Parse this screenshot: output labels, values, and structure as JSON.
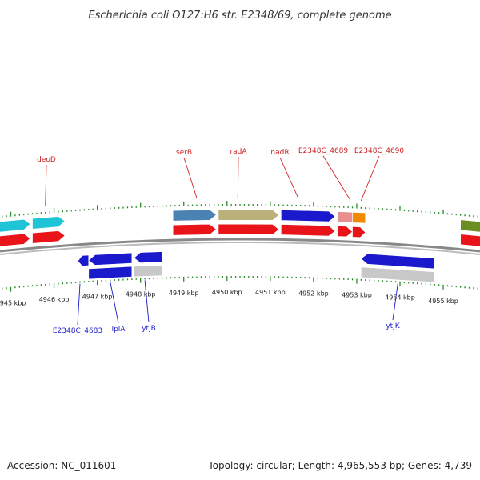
{
  "title": "Escherichia coli O127:H6 str. E2348/69, complete genome",
  "footer": {
    "accession": "Accession: NC_011601",
    "summary": "Topology: circular; Length: 4,965,553 bp; Genes: 4,739"
  },
  "colors": {
    "cds_red": "#e8141a",
    "backbone": "#888888",
    "tick_green": "#2a8a2a",
    "label_top": "#cc2222",
    "label_bottom": "#1a1acc",
    "strand_blue": "#1a1acc",
    "grey": "#c8c8c8"
  },
  "chart_data": {
    "type": "genome-map",
    "view_range_kbp": [
      4944.75,
      4955.85
    ],
    "tick_labels": [
      {
        "kbp": 4945,
        "label": "4945 kbp"
      },
      {
        "kbp": 4946,
        "label": "4946 kbp"
      },
      {
        "kbp": 4947,
        "label": "4947 kbp"
      },
      {
        "kbp": 4948,
        "label": "4948 kbp"
      },
      {
        "kbp": 4949,
        "label": "4949 kbp"
      },
      {
        "kbp": 4950,
        "label": "4950 kbp"
      },
      {
        "kbp": 4951,
        "label": "4951 kbp"
      },
      {
        "kbp": 4952,
        "label": "4952 kbp"
      },
      {
        "kbp": 4953,
        "label": "4953 kbp"
      },
      {
        "kbp": 4954,
        "label": "4954 kbp"
      },
      {
        "kbp": 4955,
        "label": "4955 kbp"
      }
    ],
    "forward_features": [
      {
        "start": 4944.7,
        "end": 4945.45,
        "color": "#1fc4d6",
        "arrow": true
      },
      {
        "start": 4945.5,
        "end": 4946.25,
        "color": "#1fc4d6",
        "arrow": true
      },
      {
        "start": 4948.75,
        "end": 4949.75,
        "color": "#4a82b4",
        "arrow": true
      },
      {
        "start": 4949.8,
        "end": 4951.2,
        "color": "#b9b07a",
        "arrow": true
      },
      {
        "start": 4951.25,
        "end": 4952.5,
        "color": "#1a1acc",
        "arrow": true
      },
      {
        "start": 4952.55,
        "end": 4952.9,
        "color": "#e89090",
        "arrow": false
      },
      {
        "start": 4952.9,
        "end": 4953.2,
        "color": "#f08a00",
        "arrow": false
      },
      {
        "start": 4955.4,
        "end": 4956.0,
        "color": "#6b8e23",
        "arrow": true
      }
    ],
    "forward_cds": [
      {
        "start": 4944.7,
        "end": 4945.45
      },
      {
        "start": 4945.5,
        "end": 4946.25
      },
      {
        "start": 4948.75,
        "end": 4949.75
      },
      {
        "start": 4949.8,
        "end": 4951.2
      },
      {
        "start": 4951.25,
        "end": 4952.5
      },
      {
        "start": 4952.55,
        "end": 4952.9
      },
      {
        "start": 4952.9,
        "end": 4953.2
      },
      {
        "start": 4955.4,
        "end": 4956.0
      }
    ],
    "reverse_features": [
      {
        "start": 4946.55,
        "end": 4946.8,
        "color": "#1a1acc",
        "arrow": true
      },
      {
        "start": 4946.8,
        "end": 4947.8,
        "color": "#1a1acc",
        "arrow": true
      },
      {
        "start": 4947.85,
        "end": 4948.5,
        "color": "#1a1acc",
        "arrow": true
      },
      {
        "start": 4953.1,
        "end": 4954.8,
        "color": "#1a1acc",
        "arrow": true
      }
    ],
    "reverse_lower": [
      {
        "start": 4946.8,
        "end": 4947.8,
        "color": "#1a1acc"
      },
      {
        "start": 4947.85,
        "end": 4948.5,
        "color": "#c8c8c8"
      },
      {
        "start": 4953.1,
        "end": 4954.8,
        "color": "#c8c8c8"
      }
    ],
    "gene_labels_top": [
      {
        "name": "deoD",
        "kbp": 4945.8
      },
      {
        "name": "serB",
        "kbp": 4949.3
      },
      {
        "name": "radA",
        "kbp": 4950.25
      },
      {
        "name": "nadR",
        "kbp": 4951.65
      },
      {
        "name": "E2348C_4689",
        "kbp": 4952.85
      },
      {
        "name": "E2348C_4690",
        "kbp": 4953.1
      }
    ],
    "gene_labels_bottom": [
      {
        "name": "E2348C_4683",
        "kbp": 4946.6
      },
      {
        "name": "lplA",
        "kbp": 4947.3
      },
      {
        "name": "ytjB",
        "kbp": 4948.1
      },
      {
        "name": "ytjK",
        "kbp": 4953.95
      }
    ]
  }
}
